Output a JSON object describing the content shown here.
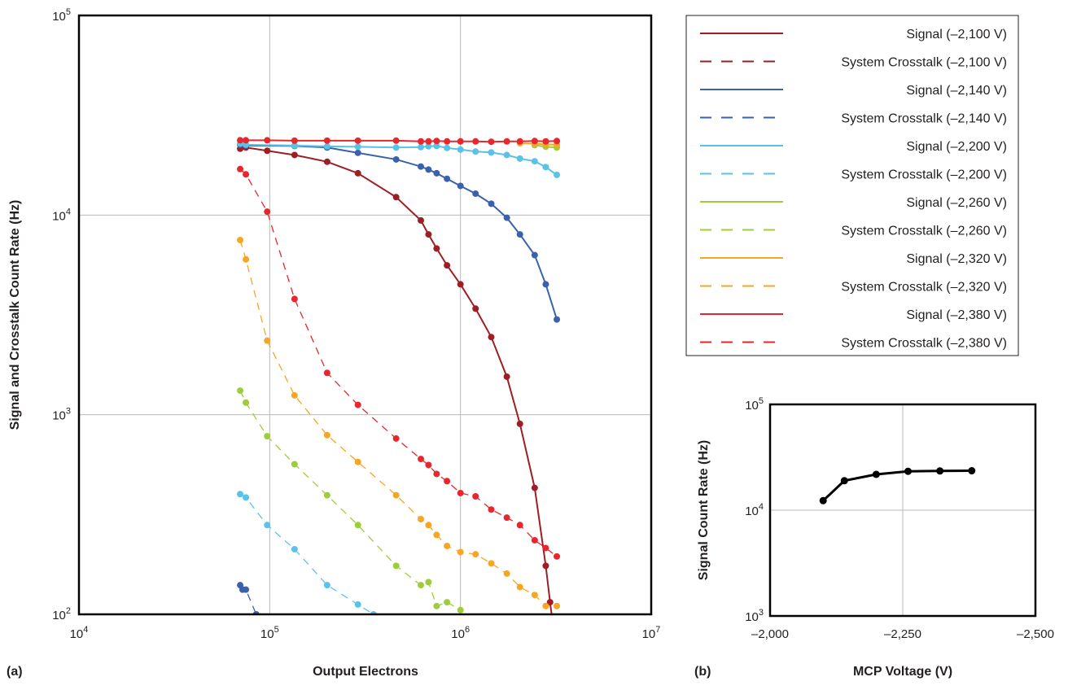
{
  "chart_data": [
    {
      "panel": "(a)",
      "type": "line",
      "xlabel": "Output Electrons",
      "ylabel": "Signal and Crosstalk Count Rate (Hz)",
      "x_scale": "log",
      "y_scale": "log",
      "xlim": [
        10000,
        10000000
      ],
      "ylim": [
        100,
        100000
      ],
      "x_ticks": [
        {
          "base": "10",
          "exp": "4"
        },
        {
          "base": "10",
          "exp": "5"
        },
        {
          "base": "10",
          "exp": "6"
        },
        {
          "base": "10",
          "exp": "7"
        }
      ],
      "y_ticks": [
        {
          "base": "10",
          "exp": "2"
        },
        {
          "base": "10",
          "exp": "3"
        },
        {
          "base": "10",
          "exp": "4"
        },
        {
          "base": "10",
          "exp": "5"
        }
      ],
      "grid": true,
      "legend_position": "outside-top-right",
      "series": [
        {
          "name": "Signal (–2,100 V)",
          "color": "#9e1f23",
          "style": "solid",
          "x": [
            70000,
            75000,
            97000,
            135000,
            200000,
            290000,
            460000,
            620000,
            680000,
            750000,
            850000,
            1000000,
            1200000,
            1450000,
            1750000,
            2050000,
            2450000,
            2800000,
            2950000,
            3150000
          ],
          "y": [
            21500,
            21800,
            21000,
            20000,
            18500,
            16200,
            12300,
            9400,
            8000,
            6800,
            5600,
            4500,
            3400,
            2450,
            1550,
            900,
            430,
            175,
            115,
            70
          ]
        },
        {
          "name": "System Crosstalk (–2,100 V)",
          "color": "#9e1f23",
          "style": "dashed",
          "x": [],
          "y": []
        },
        {
          "name": "Signal (–2,140 V)",
          "color": "#3a61ad",
          "style": "solid",
          "x": [
            70000,
            75000,
            135000,
            200000,
            290000,
            460000,
            620000,
            680000,
            750000,
            850000,
            1000000,
            1200000,
            1450000,
            1750000,
            2050000,
            2450000,
            2800000,
            3200000
          ],
          "y": [
            22500,
            22300,
            22200,
            21800,
            20500,
            19000,
            17500,
            16900,
            16200,
            15200,
            14000,
            12800,
            11400,
            9700,
            8000,
            6300,
            4500,
            3000
          ]
        },
        {
          "name": "System Crosstalk (–2,140 V)",
          "color": "#3a61ad",
          "style": "dashed",
          "x": [
            70000,
            72000,
            75000,
            85000,
            100000
          ],
          "y": [
            140,
            133,
            133,
            100,
            80
          ]
        },
        {
          "name": "Signal (–2,200 V)",
          "color": "#5bc2e7",
          "style": "solid",
          "x": [
            70000,
            75000,
            135000,
            200000,
            290000,
            460000,
            620000,
            680000,
            750000,
            850000,
            1000000,
            1200000,
            1450000,
            1750000,
            2050000,
            2450000,
            2800000,
            3200000
          ],
          "y": [
            22800,
            22500,
            22300,
            22100,
            22000,
            21800,
            21900,
            22100,
            22200,
            21700,
            21300,
            20800,
            20600,
            20000,
            19200,
            18600,
            17400,
            15900
          ]
        },
        {
          "name": "System Crosstalk (–2,200 V)",
          "color": "#5bc2e7",
          "style": "dashed",
          "x": [
            70000,
            75000,
            97000,
            135000,
            200000,
            290000,
            350000
          ],
          "y": [
            400,
            385,
            280,
            212,
            140,
            112,
            100
          ]
        },
        {
          "name": "Signal (–2,260 V)",
          "color": "#9fcc3b",
          "style": "solid",
          "x": [
            2450000,
            2800000,
            3200000
          ],
          "y": [
            22400,
            22000,
            21800
          ]
        },
        {
          "name": "System Crosstalk (–2,260 V)",
          "color": "#9fcc3b",
          "style": "dashed",
          "x": [
            70000,
            75000,
            97000,
            135000,
            200000,
            290000,
            460000,
            620000,
            680000,
            750000,
            850000,
            1000000
          ],
          "y": [
            1320,
            1150,
            780,
            565,
            395,
            280,
            175,
            140,
            145,
            110,
            115,
            105
          ]
        },
        {
          "name": "Signal (–2,320 V)",
          "color": "#f5a623",
          "style": "solid",
          "x": [
            2050000,
            2450000,
            2800000,
            3200000
          ],
          "y": [
            22900,
            22800,
            22600,
            22500
          ]
        },
        {
          "name": "System Crosstalk (–2,320 V)",
          "color": "#f5a623",
          "style": "dashed",
          "x": [
            70000,
            75000,
            97000,
            135000,
            200000,
            290000,
            460000,
            620000,
            680000,
            750000,
            850000,
            1000000,
            1200000,
            1450000,
            1750000,
            2050000,
            2450000,
            2800000,
            3200000
          ],
          "y": [
            7500,
            6000,
            2350,
            1250,
            790,
            580,
            395,
            300,
            280,
            250,
            220,
            205,
            200,
            180,
            160,
            137,
            125,
            110,
            110
          ]
        },
        {
          "name": "Signal (–2,380 V)",
          "color": "#e8262d",
          "style": "solid",
          "x": [
            70000,
            75000,
            97000,
            135000,
            200000,
            290000,
            460000,
            620000,
            680000,
            750000,
            850000,
            1000000,
            1200000,
            1450000,
            1750000,
            2050000,
            2450000,
            2800000,
            3200000
          ],
          "y": [
            23700,
            23700,
            23700,
            23600,
            23600,
            23600,
            23600,
            23400,
            23400,
            23500,
            23400,
            23400,
            23400,
            23300,
            23400,
            23400,
            23500,
            23400,
            23500
          ]
        },
        {
          "name": "System Crosstalk (–2,380 V)",
          "color": "#e8262d",
          "style": "dashed",
          "x": [
            70000,
            75000,
            97000,
            135000,
            200000,
            290000,
            460000,
            620000,
            680000,
            750000,
            850000,
            1000000,
            1200000,
            1450000,
            1750000,
            2050000,
            2450000,
            2800000,
            3200000
          ],
          "y": [
            17000,
            16000,
            10400,
            3800,
            1620,
            1120,
            760,
            600,
            560,
            505,
            465,
            405,
            390,
            335,
            305,
            280,
            235,
            215,
            195
          ]
        }
      ]
    },
    {
      "panel": "(b)",
      "type": "line",
      "xlabel": "MCP Voltage (V)",
      "ylabel": "Signal Count Rate (Hz)",
      "x_scale": "linear",
      "x_reversed": true,
      "y_scale": "log",
      "xlim": [
        -2000,
        -2500
      ],
      "ylim": [
        1000,
        100000
      ],
      "x_ticks": [
        "–2,000",
        "–2,250",
        "–2,500"
      ],
      "x_tick_values": [
        -2000,
        -2250,
        -2500
      ],
      "y_ticks": [
        {
          "base": "10",
          "exp": "3"
        },
        {
          "base": "10",
          "exp": "4"
        },
        {
          "base": "10",
          "exp": "5"
        }
      ],
      "grid": true,
      "series": [
        {
          "color": "#000000",
          "style": "solid",
          "x": [
            -2100,
            -2140,
            -2200,
            -2260,
            -2320,
            -2380
          ],
          "y": [
            12300,
            19000,
            21800,
            23300,
            23500,
            23600
          ]
        }
      ]
    }
  ]
}
